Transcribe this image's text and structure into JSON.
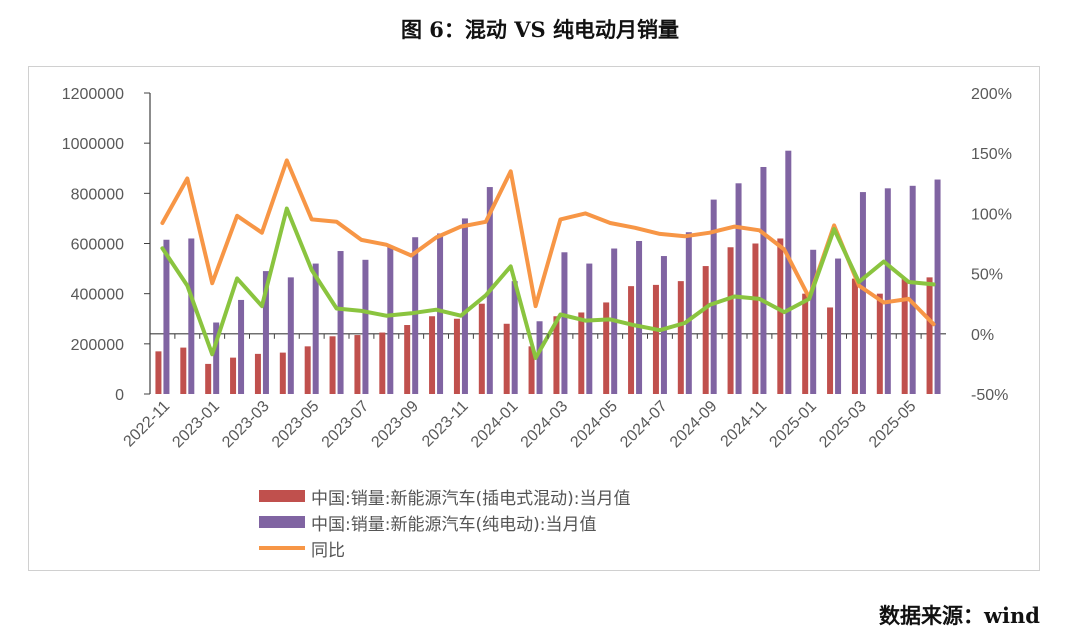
{
  "title": "图 6：混动 VS 纯电动月销量",
  "source": "数据来源：wind",
  "colors": {
    "phev": "#c0504d",
    "bev": "#8064a2",
    "yoy_orange": "#f79646",
    "yoy_green": "#8ac43f",
    "axis": "#404040",
    "tick_text": "#595959"
  },
  "chart_data": {
    "type": "bar",
    "title": "图 6：混动 VS 纯电动月销量",
    "x": [
      "2022-11",
      "2022-12",
      "2023-01",
      "2023-02",
      "2023-03",
      "2023-04",
      "2023-05",
      "2023-06",
      "2023-07",
      "2023-08",
      "2023-09",
      "2023-10",
      "2023-11",
      "2023-12",
      "2024-01",
      "2024-02",
      "2024-03",
      "2024-04",
      "2024-05",
      "2024-06",
      "2024-07",
      "2024-08",
      "2024-09",
      "2024-10",
      "2024-11",
      "2024-12",
      "2025-01",
      "2025-02",
      "2025-03",
      "2025-04",
      "2025-05",
      "2025-06"
    ],
    "x_tick_labels": [
      "2022-11",
      "2023-01",
      "2023-03",
      "2023-05",
      "2023-07",
      "2023-09",
      "2023-11",
      "2024-01",
      "2024-03",
      "2024-05",
      "2024-07",
      "2024-09",
      "2024-11",
      "2025-01",
      "2025-03",
      "2025-05"
    ],
    "y_left": {
      "min": 0,
      "max": 1200000,
      "ticks": [
        "0",
        "200000",
        "400000",
        "600000",
        "800000",
        "1000000",
        "1200000"
      ]
    },
    "y_right": {
      "min": -50,
      "max": 200,
      "ticks": [
        "-50%",
        "0%",
        "50%",
        "100%",
        "150%",
        "200%"
      ]
    },
    "series": [
      {
        "name": "中国:销量:新能源汽车(插电式混动):当月值",
        "kind": "bar",
        "axis": "left",
        "values": [
          170000,
          185000,
          120000,
          145000,
          160000,
          165000,
          190000,
          230000,
          235000,
          245000,
          275000,
          310000,
          300000,
          360000,
          280000,
          190000,
          310000,
          325000,
          365000,
          430000,
          435000,
          450000,
          510000,
          585000,
          600000,
          620000,
          400000,
          345000,
          460000,
          400000,
          460000,
          465000
        ]
      },
      {
        "name": "中国:销量:新能源汽车(纯电动):当月值",
        "kind": "bar",
        "axis": "left",
        "values": [
          615000,
          620000,
          285000,
          375000,
          490000,
          465000,
          520000,
          570000,
          535000,
          590000,
          625000,
          640000,
          700000,
          825000,
          450000,
          290000,
          565000,
          520000,
          580000,
          610000,
          550000,
          645000,
          775000,
          840000,
          905000,
          970000,
          575000,
          540000,
          805000,
          820000,
          830000,
          855000
        ]
      },
      {
        "name": "同比",
        "kind": "line",
        "axis": "right",
        "values": [
          92,
          129,
          42,
          98,
          84,
          144,
          95,
          93,
          78,
          74,
          65,
          80,
          89,
          93,
          135,
          23,
          95,
          100,
          92,
          88,
          83,
          81,
          84,
          89,
          86,
          70,
          30,
          90,
          40,
          26,
          29,
          8
        ]
      },
      {
        "kind": "line",
        "axis": "right",
        "values": [
          71,
          40,
          -17,
          46,
          23,
          104,
          53,
          21,
          19,
          15,
          17,
          20,
          15,
          32,
          56,
          -20,
          16,
          11,
          12,
          7,
          3,
          9,
          24,
          31,
          29,
          18,
          29,
          87,
          43,
          60,
          43,
          41
        ]
      }
    ],
    "legend_position": "bottom",
    "grid": false
  }
}
